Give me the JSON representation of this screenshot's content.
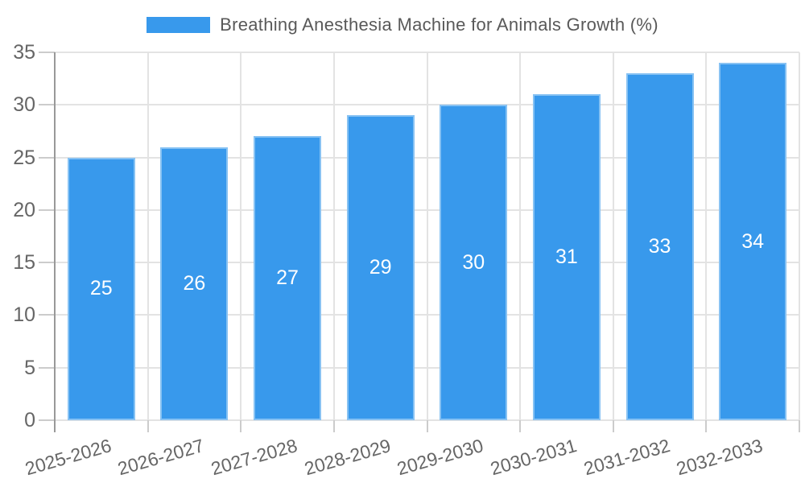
{
  "chart_data": {
    "type": "bar",
    "title": "Breathing Anesthesia Machine for Animals Growth (%)",
    "categories": [
      "2025-2026",
      "2026-2027",
      "2027-2028",
      "2028-2029",
      "2029-2030",
      "2030-2031",
      "2031-2032",
      "2032-2033"
    ],
    "series": [
      {
        "name": "Breathing Anesthesia Machine for Animals Growth (%)",
        "values": [
          25,
          26,
          27,
          29,
          30,
          31,
          33,
          34
        ]
      }
    ],
    "xlabel": "",
    "ylabel": "",
    "ylim": [
      0,
      35
    ],
    "yticks": [
      0,
      5,
      10,
      15,
      20,
      25,
      30,
      35
    ],
    "grid": true,
    "legend_position": "top-center",
    "value_labels": "inside-center",
    "x_label_rotation_deg": -16,
    "colors": {
      "bar": "#3899ec",
      "bar_border": "rgba(255,255,255,0.4)",
      "bar_label": "#ffffff",
      "grid": "#e3e3e3",
      "tick": "#cccccc",
      "axis_line": "#999999",
      "axis_text": "#666666",
      "legend_text": "#595959",
      "background": "#ffffff"
    }
  }
}
